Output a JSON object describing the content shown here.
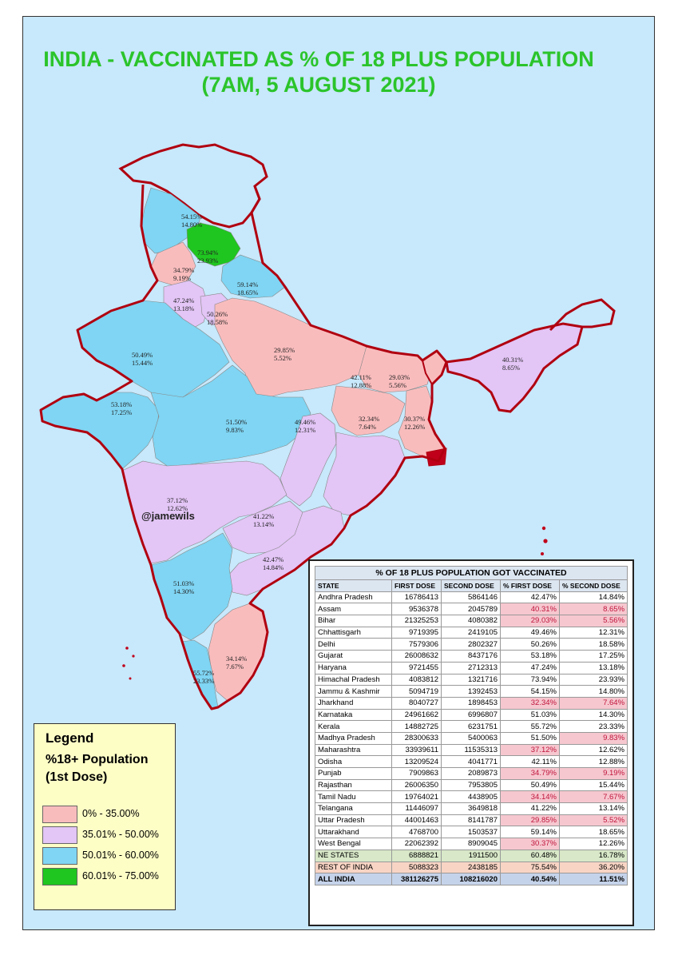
{
  "title": {
    "line1": "INDIA - VACCINATED AS % OF 18 PLUS POPULATION",
    "line2": "(7AM, 5 AUGUST 2021)"
  },
  "handle": "@jamewils",
  "colors": {
    "range_0_35": "#f9bcbd",
    "range_35_50": "#e3c5f6",
    "range_50_60": "#7fd5f3",
    "range_60_75": "#1fc61f",
    "border": "#b00010",
    "background": "#c8e8fb",
    "title": "#2bc42b"
  },
  "legend": {
    "title": "Legend",
    "subtitle1": "%18+ Population",
    "subtitle2": "(1st Dose)",
    "items": [
      {
        "label": "0% - 35.00%",
        "color": "#f9bcbd"
      },
      {
        "label": "35.01% - 50.00%",
        "color": "#e3c5f6"
      },
      {
        "label": "50.01% - 60.00%",
        "color": "#7fd5f3"
      },
      {
        "label": "60.01% - 75.00%",
        "color": "#1fc61f"
      }
    ]
  },
  "map_labels": [
    {
      "state": "Jammu & Kashmir",
      "first": "54.15%",
      "second": "14.80%"
    },
    {
      "state": "Himachal Pradesh",
      "first": "73.94%",
      "second": "23.93%"
    },
    {
      "state": "Punjab",
      "first": "34.79%",
      "second": "9.19%"
    },
    {
      "state": "Uttarakhand",
      "first": "59.14%",
      "second": "18.65%"
    },
    {
      "state": "Haryana",
      "first": "47.24%",
      "second": "13.18%"
    },
    {
      "state": "Delhi",
      "first": "50.26%",
      "second": "18.58%"
    },
    {
      "state": "Uttar Pradesh",
      "first": "29.85%",
      "second": "5.52%"
    },
    {
      "state": "Rajasthan",
      "first": "50.49%",
      "second": "15.44%"
    },
    {
      "state": "Bihar",
      "first": "29.03%",
      "second": "5.56%"
    },
    {
      "state": "Assam",
      "first": "40.31%",
      "second": "8.65%"
    },
    {
      "state": "Jharkhand",
      "first": "32.34%",
      "second": "7.64%"
    },
    {
      "state": "West Bengal",
      "first": "30.37%",
      "second": "12.26%"
    },
    {
      "state": "Gujarat",
      "first": "53.18%",
      "second": "17.25%"
    },
    {
      "state": "Madhya Pradesh",
      "first": "51.50%",
      "second": "9.83%"
    },
    {
      "state": "Chhattisgarh",
      "first": "49.46%",
      "second": "12.31%"
    },
    {
      "state": "Odisha",
      "first": "42.11%",
      "second": "12.88%"
    },
    {
      "state": "Maharashtra",
      "first": "37.12%",
      "second": "12.62%"
    },
    {
      "state": "Telangana",
      "first": "41.22%",
      "second": "13.14%"
    },
    {
      "state": "Andhra Pradesh",
      "first": "42.47%",
      "second": "14.84%"
    },
    {
      "state": "Karnataka",
      "first": "51.03%",
      "second": "14.30%"
    },
    {
      "state": "Tamil Nadu",
      "first": "34.14%",
      "second": "7.67%"
    },
    {
      "state": "Kerala",
      "first": "55.72%",
      "second": "23.33%"
    }
  ],
  "table": {
    "title": "% OF 18 PLUS POPULATION GOT VACCINATED",
    "headers": [
      "STATE",
      "FIRST DOSE",
      "SECOND DOSE",
      "% FIRST DOSE",
      "% SECOND DOSE"
    ],
    "rows": [
      [
        "Andhra Pradesh",
        "16786413",
        "5864146",
        "42.47%",
        "14.84%"
      ],
      [
        "Assam",
        "9536378",
        "2045789",
        "40.31%",
        "8.65%"
      ],
      [
        "Bihar",
        "21325253",
        "4080382",
        "29.03%",
        "5.56%"
      ],
      [
        "Chhattisgarh",
        "9719395",
        "2419105",
        "49.46%",
        "12.31%"
      ],
      [
        "Delhi",
        "7579306",
        "2802327",
        "50.26%",
        "18.58%"
      ],
      [
        "Gujarat",
        "26008632",
        "8437176",
        "53.18%",
        "17.25%"
      ],
      [
        "Haryana",
        "9721455",
        "2712313",
        "47.24%",
        "13.18%"
      ],
      [
        "Himachal Pradesh",
        "4083812",
        "1321716",
        "73.94%",
        "23.93%"
      ],
      [
        "Jammu & Kashmir",
        "5094719",
        "1392453",
        "54.15%",
        "14.80%"
      ],
      [
        "Jharkhand",
        "8040727",
        "1898453",
        "32.34%",
        "7.64%"
      ],
      [
        "Karnataka",
        "24961662",
        "6996807",
        "51.03%",
        "14.30%"
      ],
      [
        "Kerala",
        "14882725",
        "6231751",
        "55.72%",
        "23.33%"
      ],
      [
        "Madhya Pradesh",
        "28300633",
        "5400063",
        "51.50%",
        "9.83%"
      ],
      [
        "Maharashtra",
        "33939611",
        "11535313",
        "37.12%",
        "12.62%"
      ],
      [
        "Odisha",
        "13209524",
        "4041771",
        "42.11%",
        "12.88%"
      ],
      [
        "Punjab",
        "7909863",
        "2089873",
        "34.79%",
        "9.19%"
      ],
      [
        "Rajasthan",
        "26006350",
        "7953805",
        "50.49%",
        "15.44%"
      ],
      [
        "Tamil Nadu",
        "19764021",
        "4438905",
        "34.14%",
        "7.67%"
      ],
      [
        "Telangana",
        "11446097",
        "3649818",
        "41.22%",
        "13.14%"
      ],
      [
        "Uttar Pradesh",
        "44001463",
        "8141787",
        "29.85%",
        "5.52%"
      ],
      [
        "Uttarakhand",
        "4768700",
        "1503537",
        "59.14%",
        "18.65%"
      ],
      [
        "West Bengal",
        "22062392",
        "8909045",
        "30.37%",
        "12.26%"
      ]
    ],
    "highlight": [
      [
        false,
        false
      ],
      [
        true,
        true
      ],
      [
        true,
        true
      ],
      [
        false,
        false
      ],
      [
        false,
        false
      ],
      [
        false,
        false
      ],
      [
        false,
        false
      ],
      [
        false,
        false
      ],
      [
        false,
        false
      ],
      [
        true,
        true
      ],
      [
        false,
        false
      ],
      [
        false,
        false
      ],
      [
        false,
        true
      ],
      [
        true,
        false
      ],
      [
        false,
        false
      ],
      [
        true,
        true
      ],
      [
        false,
        false
      ],
      [
        true,
        true
      ],
      [
        false,
        false
      ],
      [
        true,
        true
      ],
      [
        false,
        false
      ],
      [
        true,
        false
      ]
    ],
    "ne_states": [
      "NE STATES",
      "6888821",
      "1911500",
      "60.48%",
      "16.78%"
    ],
    "rest_of_india": [
      "REST OF INDIA",
      "5088323",
      "2438185",
      "75.54%",
      "36.20%"
    ],
    "all_india": [
      "ALL INDIA",
      "381126275",
      "108216020",
      "40.54%",
      "11.51%"
    ]
  }
}
